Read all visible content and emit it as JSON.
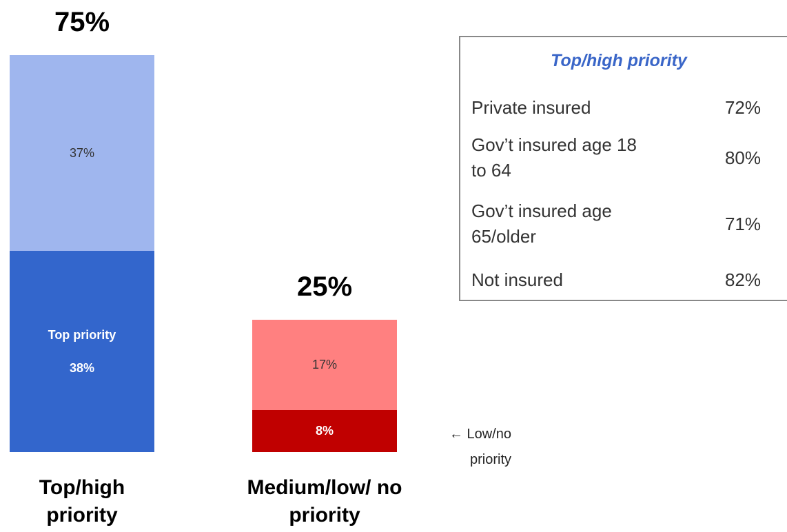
{
  "chart_data": {
    "type": "stacked-bar",
    "bars": [
      {
        "category": "Top/high priority",
        "total": 75,
        "total_label": "75%",
        "segments": [
          {
            "value": 38,
            "value_label": "38%",
            "label": "Top priority",
            "color": "#3366cc",
            "text_color": "#ffffff",
            "bold": true
          },
          {
            "value": 37,
            "value_label": "37%",
            "color": "#9fb6ee",
            "text_color": "#333333",
            "bold": false
          }
        ]
      },
      {
        "category": "Medium/low/ no priority",
        "total": 25,
        "total_label": "25%",
        "segments": [
          {
            "value": 8,
            "value_label": "8%",
            "color": "#c00000",
            "text_color": "#ffffff",
            "bold": true
          },
          {
            "value": 17,
            "value_label": "17%",
            "color": "#ff8080",
            "text_color": "#333333",
            "bold": false
          }
        ]
      }
    ],
    "annotation": "← Low/no priority"
  },
  "table": {
    "title": "Top/high priority",
    "rows": [
      [
        "Private insured",
        "72%"
      ],
      [
        "Gov’t insured age 18 to 64",
        "80%"
      ],
      [
        "Gov’t insured age 65/older",
        "71%"
      ],
      [
        "Not insured",
        "82%"
      ]
    ]
  }
}
